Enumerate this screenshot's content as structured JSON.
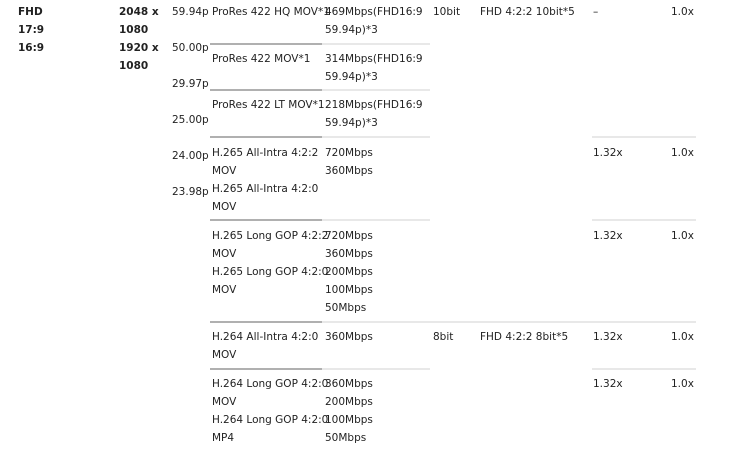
{
  "format": {
    "lines": [
      "FHD",
      "17:9",
      "16:9"
    ]
  },
  "resolution": {
    "lines": [
      "2048 x",
      "1080",
      "1920 x",
      "1080"
    ]
  },
  "frame_rates": [
    "59.94p",
    "50.00p",
    "29.97p",
    "25.00p",
    "24.00p",
    "23.98p"
  ],
  "rows": [
    {
      "codec": "ProRes 422 HQ MOV*1",
      "bitrate": "469Mbps(FHD16:9\n59.94p)*3",
      "bit_depth": "10bit",
      "output": "FHD 4:2:2 10bit*5",
      "ratio": "–",
      "ratio2": "1.0x"
    },
    {
      "codec": "ProRes 422 MOV*1",
      "bitrate": "314Mbps(FHD16:9\n59.94p)*3"
    },
    {
      "codec": "ProRes 422 LT MOV*1",
      "bitrate": "218Mbps(FHD16:9\n59.94p)*3"
    },
    {
      "codec": "H.265 All-Intra 4:2:2\nMOV\nH.265 All-Intra 4:2:0\nMOV",
      "bitrate": "720Mbps\n360Mbps",
      "ratio": "1.32x",
      "ratio2": "1.0x"
    },
    {
      "codec": "H.265 Long GOP 4:2:2\nMOV\nH.265 Long GOP 4:2:0\nMOV",
      "bitrate": "720Mbps\n360Mbps\n200Mbps\n100Mbps\n50Mbps",
      "ratio": "1.32x",
      "ratio2": "1.0x"
    },
    {
      "codec": "H.264 All-Intra 4:2:0\nMOV",
      "bitrate": "360Mbps",
      "bit_depth": "8bit",
      "output": "FHD 4:2:2 8bit*5",
      "ratio": "1.32x",
      "ratio2": "1.0x"
    },
    {
      "codec": "H.264 Long GOP 4:2:0\nMOV\nH.264 Long GOP 4:2:0\nMP4",
      "bitrate": "360Mbps\n200Mbps\n100Mbps\n50Mbps",
      "ratio": "1.32x",
      "ratio2": "1.0x"
    }
  ]
}
